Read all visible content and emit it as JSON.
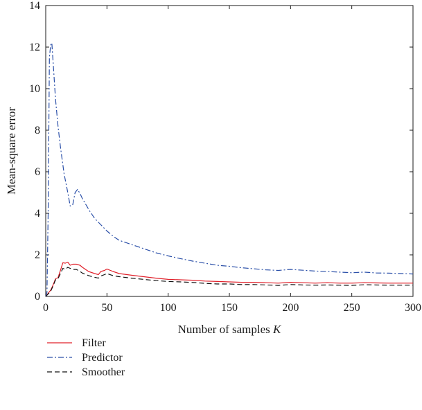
{
  "chart_data": {
    "type": "line",
    "xlabel": "Number of samples",
    "xlabel_var": "K",
    "ylabel": "Mean-square error",
    "xlim": [
      0,
      300
    ],
    "ylim": [
      0,
      14
    ],
    "xticks": [
      0,
      50,
      100,
      150,
      200,
      250,
      300
    ],
    "yticks": [
      0,
      2,
      4,
      6,
      8,
      10,
      12,
      14
    ],
    "grid": false,
    "legend_position": "below plot, left",
    "series": [
      {
        "name": "Filter",
        "color": "#e0202a",
        "dash": "solid",
        "x": [
          0,
          2,
          4,
          6,
          8,
          10,
          12,
          14,
          16,
          18,
          20,
          22,
          25,
          28,
          30,
          35,
          40,
          43,
          45,
          48,
          50,
          55,
          60,
          70,
          80,
          90,
          100,
          110,
          120,
          130,
          140,
          150,
          160,
          170,
          180,
          190,
          200,
          210,
          220,
          230,
          240,
          250,
          260,
          270,
          280,
          290,
          300
        ],
        "y": [
          0.0,
          0.15,
          0.3,
          0.55,
          0.85,
          0.9,
          1.25,
          1.62,
          1.6,
          1.65,
          1.5,
          1.55,
          1.55,
          1.5,
          1.4,
          1.2,
          1.1,
          1.05,
          1.2,
          1.25,
          1.32,
          1.2,
          1.1,
          1.02,
          0.95,
          0.88,
          0.82,
          0.8,
          0.78,
          0.74,
          0.72,
          0.7,
          0.68,
          0.68,
          0.66,
          0.64,
          0.68,
          0.66,
          0.64,
          0.66,
          0.64,
          0.64,
          0.66,
          0.65,
          0.64,
          0.64,
          0.64
        ]
      },
      {
        "name": "Predictor",
        "color": "#2a4fa8",
        "dash": "dashdot",
        "x": [
          0,
          1,
          2,
          3,
          4,
          5,
          6,
          8,
          10,
          12,
          15,
          18,
          20,
          22,
          24,
          26,
          28,
          30,
          33,
          36,
          40,
          45,
          50,
          55,
          60,
          70,
          80,
          90,
          100,
          110,
          120,
          130,
          140,
          150,
          160,
          170,
          180,
          190,
          200,
          210,
          220,
          230,
          240,
          250,
          260,
          270,
          280,
          290,
          300
        ],
        "y": [
          0.0,
          0.2,
          4.0,
          11.5,
          12.1,
          12.2,
          11.3,
          9.5,
          8.2,
          7.2,
          5.9,
          5.0,
          4.35,
          4.4,
          5.0,
          5.15,
          4.95,
          4.7,
          4.4,
          4.1,
          3.75,
          3.45,
          3.15,
          2.9,
          2.7,
          2.5,
          2.3,
          2.1,
          1.95,
          1.82,
          1.7,
          1.6,
          1.5,
          1.45,
          1.38,
          1.33,
          1.28,
          1.25,
          1.3,
          1.26,
          1.22,
          1.2,
          1.17,
          1.14,
          1.17,
          1.13,
          1.12,
          1.1,
          1.08
        ]
      },
      {
        "name": "Smoother",
        "color": "#111111",
        "dash": "dashed",
        "x": [
          0,
          2,
          4,
          6,
          8,
          10,
          12,
          14,
          16,
          18,
          20,
          22,
          25,
          28,
          30,
          35,
          40,
          43,
          45,
          48,
          50,
          55,
          60,
          70,
          80,
          90,
          100,
          110,
          120,
          130,
          140,
          150,
          160,
          170,
          180,
          190,
          200,
          210,
          220,
          230,
          240,
          250,
          260,
          270,
          280,
          290,
          300
        ],
        "y": [
          0.0,
          0.12,
          0.25,
          0.5,
          0.8,
          0.85,
          1.1,
          1.35,
          1.3,
          1.4,
          1.35,
          1.3,
          1.3,
          1.2,
          1.12,
          1.0,
          0.92,
          0.88,
          0.98,
          1.05,
          1.1,
          1.0,
          0.95,
          0.88,
          0.82,
          0.76,
          0.72,
          0.7,
          0.67,
          0.63,
          0.6,
          0.6,
          0.57,
          0.57,
          0.55,
          0.53,
          0.57,
          0.55,
          0.54,
          0.55,
          0.54,
          0.53,
          0.56,
          0.55,
          0.54,
          0.54,
          0.54
        ]
      }
    ]
  }
}
